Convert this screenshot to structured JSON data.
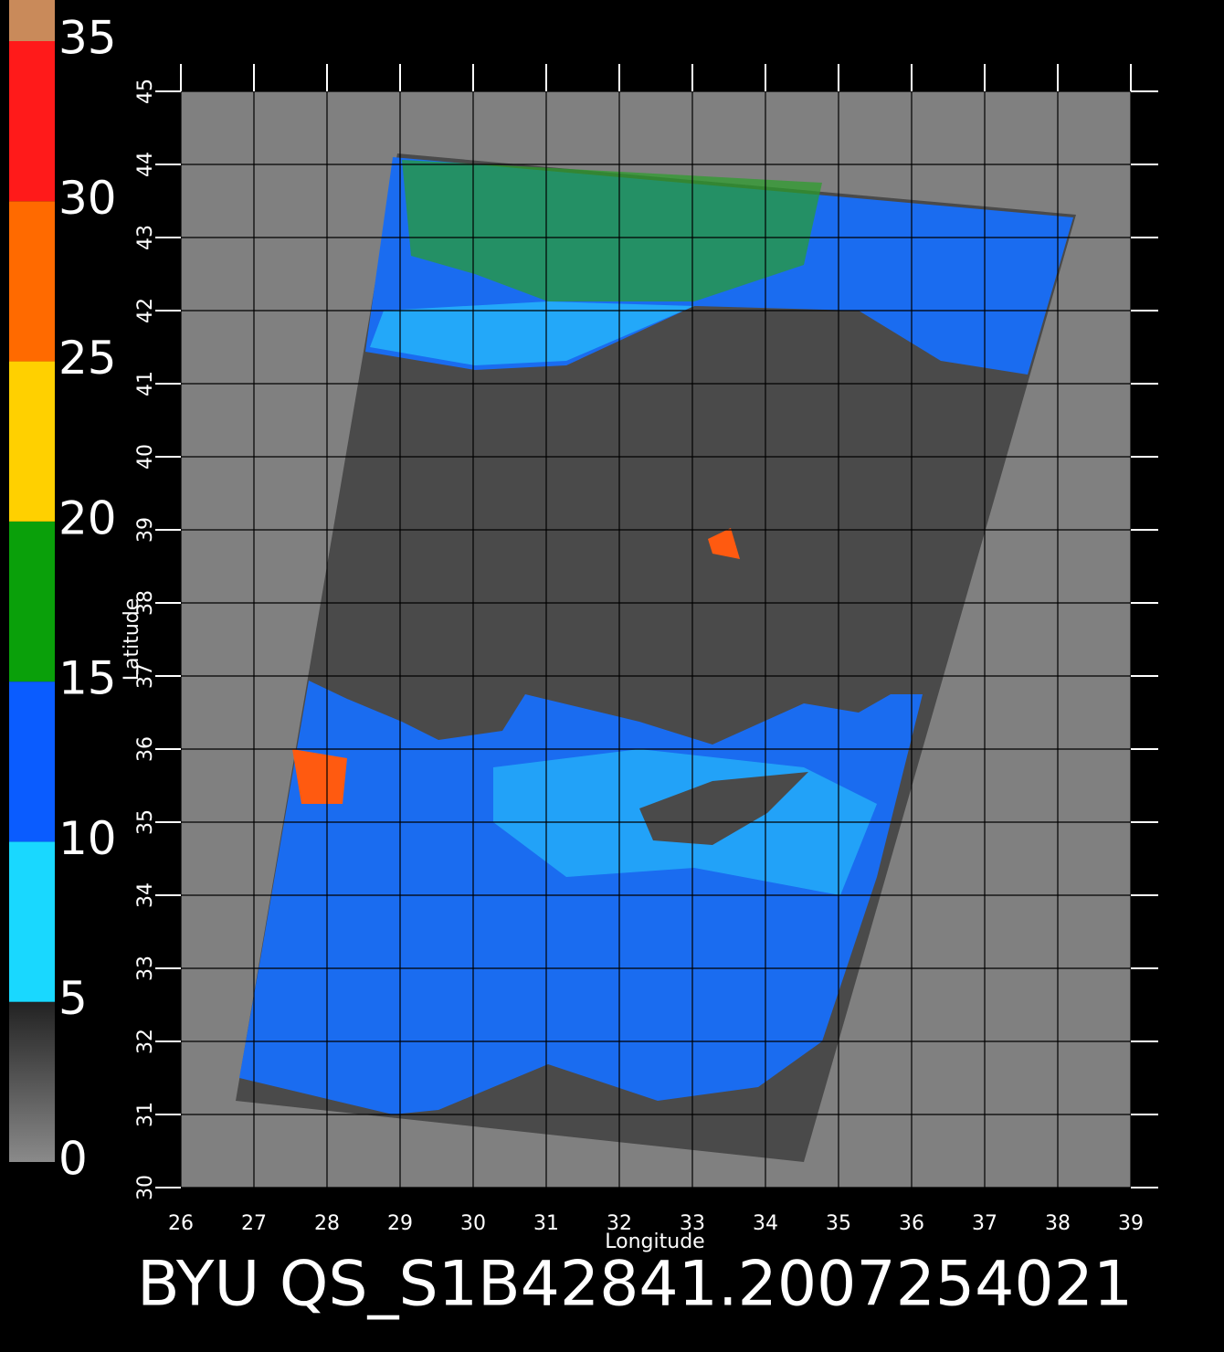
{
  "colorbar": {
    "ticks": [
      0,
      5,
      10,
      15,
      20,
      25,
      30,
      35
    ],
    "colors": [
      "#7a7a7a",
      "#19d8ff",
      "#0a5cff",
      "#0aa00a",
      "#ffd000",
      "#ff6a00",
      "#ff1a1a"
    ]
  },
  "map": {
    "xlabel": "Longitude",
    "ylabel": "Latitude",
    "xlim": [
      26,
      39
    ],
    "ylim": [
      30,
      45
    ],
    "xticks": [
      26,
      27,
      28,
      29,
      30,
      31,
      32,
      33,
      34,
      35,
      36,
      37,
      38,
      39
    ],
    "yticks": [
      30,
      31,
      32,
      33,
      34,
      35,
      36,
      37,
      38,
      39,
      40,
      41,
      42,
      43,
      44,
      45
    ],
    "grid": true
  },
  "caption": "BYU QS_S1B42841.2007254021"
}
